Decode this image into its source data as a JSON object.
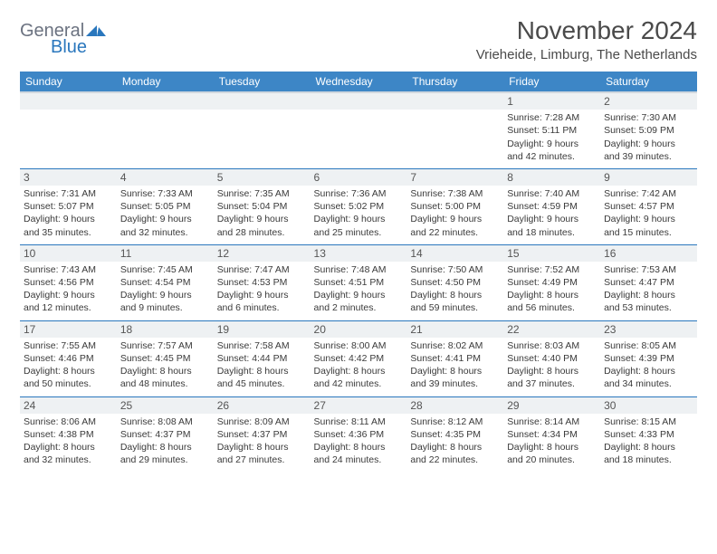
{
  "logo": {
    "text_grey": "General",
    "text_blue": "Blue"
  },
  "header": {
    "month_title": "November 2024",
    "location": "Vrieheide, Limburg, The Netherlands"
  },
  "colors": {
    "header_bg": "#3d86c6",
    "header_text": "#ffffff",
    "rule": "#2a77bd",
    "daynum_bg": "#eef1f3",
    "body_text": "#3a3a3a"
  },
  "day_headers": [
    "Sunday",
    "Monday",
    "Tuesday",
    "Wednesday",
    "Thursday",
    "Friday",
    "Saturday"
  ],
  "weeks": [
    [
      null,
      null,
      null,
      null,
      null,
      {
        "n": "1",
        "sunrise": "Sunrise: 7:28 AM",
        "sunset": "Sunset: 5:11 PM",
        "day1": "Daylight: 9 hours",
        "day2": "and 42 minutes."
      },
      {
        "n": "2",
        "sunrise": "Sunrise: 7:30 AM",
        "sunset": "Sunset: 5:09 PM",
        "day1": "Daylight: 9 hours",
        "day2": "and 39 minutes."
      }
    ],
    [
      {
        "n": "3",
        "sunrise": "Sunrise: 7:31 AM",
        "sunset": "Sunset: 5:07 PM",
        "day1": "Daylight: 9 hours",
        "day2": "and 35 minutes."
      },
      {
        "n": "4",
        "sunrise": "Sunrise: 7:33 AM",
        "sunset": "Sunset: 5:05 PM",
        "day1": "Daylight: 9 hours",
        "day2": "and 32 minutes."
      },
      {
        "n": "5",
        "sunrise": "Sunrise: 7:35 AM",
        "sunset": "Sunset: 5:04 PM",
        "day1": "Daylight: 9 hours",
        "day2": "and 28 minutes."
      },
      {
        "n": "6",
        "sunrise": "Sunrise: 7:36 AM",
        "sunset": "Sunset: 5:02 PM",
        "day1": "Daylight: 9 hours",
        "day2": "and 25 minutes."
      },
      {
        "n": "7",
        "sunrise": "Sunrise: 7:38 AM",
        "sunset": "Sunset: 5:00 PM",
        "day1": "Daylight: 9 hours",
        "day2": "and 22 minutes."
      },
      {
        "n": "8",
        "sunrise": "Sunrise: 7:40 AM",
        "sunset": "Sunset: 4:59 PM",
        "day1": "Daylight: 9 hours",
        "day2": "and 18 minutes."
      },
      {
        "n": "9",
        "sunrise": "Sunrise: 7:42 AM",
        "sunset": "Sunset: 4:57 PM",
        "day1": "Daylight: 9 hours",
        "day2": "and 15 minutes."
      }
    ],
    [
      {
        "n": "10",
        "sunrise": "Sunrise: 7:43 AM",
        "sunset": "Sunset: 4:56 PM",
        "day1": "Daylight: 9 hours",
        "day2": "and 12 minutes."
      },
      {
        "n": "11",
        "sunrise": "Sunrise: 7:45 AM",
        "sunset": "Sunset: 4:54 PM",
        "day1": "Daylight: 9 hours",
        "day2": "and 9 minutes."
      },
      {
        "n": "12",
        "sunrise": "Sunrise: 7:47 AM",
        "sunset": "Sunset: 4:53 PM",
        "day1": "Daylight: 9 hours",
        "day2": "and 6 minutes."
      },
      {
        "n": "13",
        "sunrise": "Sunrise: 7:48 AM",
        "sunset": "Sunset: 4:51 PM",
        "day1": "Daylight: 9 hours",
        "day2": "and 2 minutes."
      },
      {
        "n": "14",
        "sunrise": "Sunrise: 7:50 AM",
        "sunset": "Sunset: 4:50 PM",
        "day1": "Daylight: 8 hours",
        "day2": "and 59 minutes."
      },
      {
        "n": "15",
        "sunrise": "Sunrise: 7:52 AM",
        "sunset": "Sunset: 4:49 PM",
        "day1": "Daylight: 8 hours",
        "day2": "and 56 minutes."
      },
      {
        "n": "16",
        "sunrise": "Sunrise: 7:53 AM",
        "sunset": "Sunset: 4:47 PM",
        "day1": "Daylight: 8 hours",
        "day2": "and 53 minutes."
      }
    ],
    [
      {
        "n": "17",
        "sunrise": "Sunrise: 7:55 AM",
        "sunset": "Sunset: 4:46 PM",
        "day1": "Daylight: 8 hours",
        "day2": "and 50 minutes."
      },
      {
        "n": "18",
        "sunrise": "Sunrise: 7:57 AM",
        "sunset": "Sunset: 4:45 PM",
        "day1": "Daylight: 8 hours",
        "day2": "and 48 minutes."
      },
      {
        "n": "19",
        "sunrise": "Sunrise: 7:58 AM",
        "sunset": "Sunset: 4:44 PM",
        "day1": "Daylight: 8 hours",
        "day2": "and 45 minutes."
      },
      {
        "n": "20",
        "sunrise": "Sunrise: 8:00 AM",
        "sunset": "Sunset: 4:42 PM",
        "day1": "Daylight: 8 hours",
        "day2": "and 42 minutes."
      },
      {
        "n": "21",
        "sunrise": "Sunrise: 8:02 AM",
        "sunset": "Sunset: 4:41 PM",
        "day1": "Daylight: 8 hours",
        "day2": "and 39 minutes."
      },
      {
        "n": "22",
        "sunrise": "Sunrise: 8:03 AM",
        "sunset": "Sunset: 4:40 PM",
        "day1": "Daylight: 8 hours",
        "day2": "and 37 minutes."
      },
      {
        "n": "23",
        "sunrise": "Sunrise: 8:05 AM",
        "sunset": "Sunset: 4:39 PM",
        "day1": "Daylight: 8 hours",
        "day2": "and 34 minutes."
      }
    ],
    [
      {
        "n": "24",
        "sunrise": "Sunrise: 8:06 AM",
        "sunset": "Sunset: 4:38 PM",
        "day1": "Daylight: 8 hours",
        "day2": "and 32 minutes."
      },
      {
        "n": "25",
        "sunrise": "Sunrise: 8:08 AM",
        "sunset": "Sunset: 4:37 PM",
        "day1": "Daylight: 8 hours",
        "day2": "and 29 minutes."
      },
      {
        "n": "26",
        "sunrise": "Sunrise: 8:09 AM",
        "sunset": "Sunset: 4:37 PM",
        "day1": "Daylight: 8 hours",
        "day2": "and 27 minutes."
      },
      {
        "n": "27",
        "sunrise": "Sunrise: 8:11 AM",
        "sunset": "Sunset: 4:36 PM",
        "day1": "Daylight: 8 hours",
        "day2": "and 24 minutes."
      },
      {
        "n": "28",
        "sunrise": "Sunrise: 8:12 AM",
        "sunset": "Sunset: 4:35 PM",
        "day1": "Daylight: 8 hours",
        "day2": "and 22 minutes."
      },
      {
        "n": "29",
        "sunrise": "Sunrise: 8:14 AM",
        "sunset": "Sunset: 4:34 PM",
        "day1": "Daylight: 8 hours",
        "day2": "and 20 minutes."
      },
      {
        "n": "30",
        "sunrise": "Sunrise: 8:15 AM",
        "sunset": "Sunset: 4:33 PM",
        "day1": "Daylight: 8 hours",
        "day2": "and 18 minutes."
      }
    ]
  ]
}
